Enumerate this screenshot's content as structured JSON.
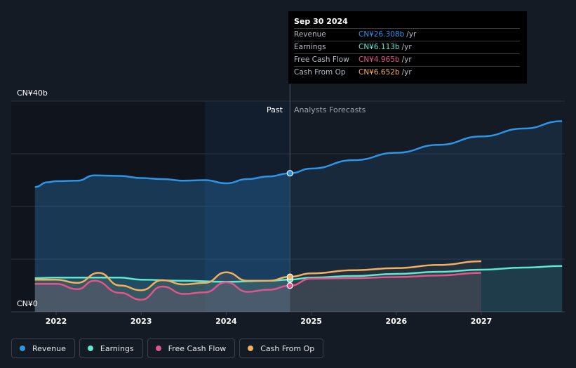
{
  "tooltip": {
    "date": "Sep 30 2024",
    "rows": [
      {
        "label": "Revenue",
        "value": "CN¥26.308b",
        "unit": "/yr",
        "color": "#2e94e6"
      },
      {
        "label": "Earnings",
        "value": "CN¥6.113b",
        "unit": "/yr",
        "color": "#5ee8d0"
      },
      {
        "label": "Free Cash Flow",
        "value": "CN¥4.965b",
        "unit": "/yr",
        "color": "#e0558c"
      },
      {
        "label": "Cash From Op",
        "value": "CN¥6.652b",
        "unit": "/yr",
        "color": "#f0b060"
      }
    ]
  },
  "labels": {
    "y_top": "CN¥40b",
    "y_bottom": "CN¥0",
    "past": "Past",
    "forecast": "Analysts Forecasts"
  },
  "legend": [
    {
      "label": "Revenue",
      "color": "#2e94e6"
    },
    {
      "label": "Earnings",
      "color": "#5ee8d0"
    },
    {
      "label": "Free Cash Flow",
      "color": "#e0558c"
    },
    {
      "label": "Cash From Op",
      "color": "#f0b060"
    }
  ],
  "chart_data": {
    "type": "line",
    "ylim": [
      0,
      40
    ],
    "xlim": [
      2021.5,
      2027.95
    ],
    "x_ticks": [
      "2022",
      "2023",
      "2024",
      "2025",
      "2026",
      "2027"
    ],
    "past_end": 2024.75,
    "series": [
      {
        "name": "Revenue",
        "color": "#2e94e6",
        "points": [
          [
            2021.75,
            23.7
          ],
          [
            2021.9,
            24.6
          ],
          [
            2022.0,
            24.8
          ],
          [
            2022.25,
            24.9
          ],
          [
            2022.45,
            25.9
          ],
          [
            2022.75,
            25.8
          ],
          [
            2023.0,
            25.4
          ],
          [
            2023.25,
            25.2
          ],
          [
            2023.5,
            24.9
          ],
          [
            2023.75,
            25.0
          ],
          [
            2024.0,
            24.4
          ],
          [
            2024.25,
            25.2
          ],
          [
            2024.5,
            25.7
          ],
          [
            2024.75,
            26.308
          ]
        ],
        "forecast": [
          [
            2024.75,
            26.308
          ],
          [
            2025.0,
            27.2
          ],
          [
            2025.5,
            28.8
          ],
          [
            2026.0,
            30.2
          ],
          [
            2026.5,
            31.7
          ],
          [
            2027.0,
            33.3
          ],
          [
            2027.5,
            34.8
          ],
          [
            2027.95,
            36.2
          ]
        ]
      },
      {
        "name": "Earnings",
        "color": "#5ee8d0",
        "points": [
          [
            2021.75,
            6.4
          ],
          [
            2022.0,
            6.5
          ],
          [
            2022.5,
            6.5
          ],
          [
            2022.75,
            6.5
          ],
          [
            2023.0,
            6.1
          ],
          [
            2023.5,
            5.9
          ],
          [
            2024.0,
            5.7
          ],
          [
            2024.5,
            5.9
          ],
          [
            2024.75,
            6.113
          ]
        ],
        "forecast": [
          [
            2024.75,
            6.113
          ],
          [
            2025.0,
            6.5
          ],
          [
            2025.5,
            6.8
          ],
          [
            2026.0,
            7.2
          ],
          [
            2026.5,
            7.6
          ],
          [
            2027.0,
            8.0
          ],
          [
            2027.5,
            8.4
          ],
          [
            2027.95,
            8.7
          ]
        ]
      },
      {
        "name": "Free Cash Flow",
        "color": "#e0558c",
        "points": [
          [
            2021.75,
            5.3
          ],
          [
            2022.0,
            5.3
          ],
          [
            2022.25,
            4.3
          ],
          [
            2022.45,
            5.9
          ],
          [
            2022.75,
            3.6
          ],
          [
            2023.0,
            2.3
          ],
          [
            2023.25,
            4.8
          ],
          [
            2023.5,
            3.4
          ],
          [
            2023.75,
            3.7
          ],
          [
            2024.0,
            5.6
          ],
          [
            2024.25,
            3.8
          ],
          [
            2024.5,
            4.2
          ],
          [
            2024.75,
            4.965
          ]
        ],
        "forecast": [
          [
            2024.75,
            4.965
          ],
          [
            2025.0,
            6.3
          ],
          [
            2025.5,
            6.4
          ],
          [
            2026.0,
            6.6
          ],
          [
            2026.5,
            6.9
          ],
          [
            2027.0,
            7.4
          ]
        ]
      },
      {
        "name": "Cash From Op",
        "color": "#f0b060",
        "points": [
          [
            2021.75,
            6.1
          ],
          [
            2022.0,
            6.1
          ],
          [
            2022.25,
            5.5
          ],
          [
            2022.5,
            7.4
          ],
          [
            2022.75,
            5.0
          ],
          [
            2023.0,
            4.1
          ],
          [
            2023.25,
            6.0
          ],
          [
            2023.5,
            5.2
          ],
          [
            2023.75,
            5.5
          ],
          [
            2024.0,
            7.5
          ],
          [
            2024.25,
            5.9
          ],
          [
            2024.5,
            5.9
          ],
          [
            2024.75,
            6.652
          ]
        ],
        "forecast": [
          [
            2024.75,
            6.652
          ],
          [
            2025.0,
            7.3
          ],
          [
            2025.5,
            7.9
          ],
          [
            2026.0,
            8.3
          ],
          [
            2026.5,
            8.9
          ],
          [
            2027.0,
            9.6
          ]
        ]
      }
    ]
  }
}
